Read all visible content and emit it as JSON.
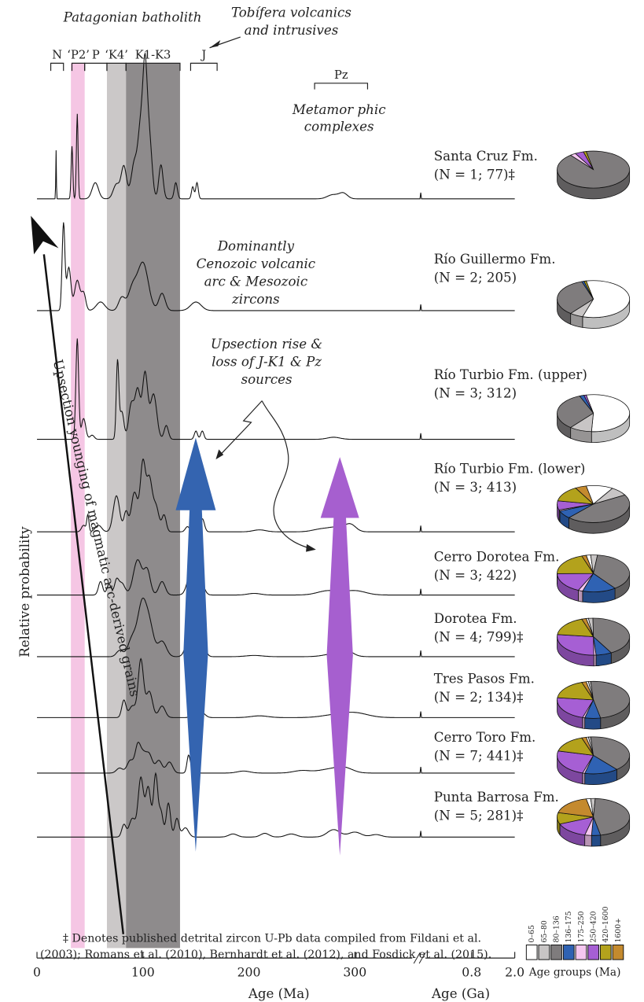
{
  "chart_data": {
    "type": "line",
    "title": "",
    "xlabel": "Age (Ma)",
    "xlabel2": "Age (Ga)",
    "ylabel": "Relative probability",
    "x_ticks": [
      "0",
      "100",
      "200",
      "300",
      "0.8",
      "2.0"
    ],
    "xlim_ma": [
      0,
      360
    ],
    "top_labels": {
      "batholith": "Patagonian batholith",
      "tobifera": [
        "Tobífera volcanics",
        "and intrusives"
      ],
      "metamorphic": [
        "Metamor phic",
        "complexes"
      ],
      "brackets": [
        {
          "label": "N",
          "range": [
            13,
            25
          ]
        },
        {
          "label": "‘P2’",
          "range": [
            33,
            45
          ]
        },
        {
          "label": "P",
          "range": [
            45,
            66
          ]
        },
        {
          "label": "‘K4’",
          "range": [
            66,
            84
          ]
        },
        {
          "label": "K1-K3",
          "range": [
            84,
            135
          ]
        },
        {
          "label": "J",
          "range": [
            145,
            170
          ]
        },
        {
          "label": "Pz",
          "range": [
            262,
            312
          ]
        }
      ]
    },
    "bands": [
      {
        "name": "P2",
        "range": [
          32,
          45
        ],
        "color": "#f5c6e4"
      },
      {
        "name": "K4",
        "range": [
          66,
          84
        ],
        "color": "#cbc8c8"
      },
      {
        "name": "K1-K3",
        "range": [
          84,
          135
        ],
        "color": "#8e8b8c"
      }
    ],
    "annotations": {
      "cenozoic": [
        "Dominantly",
        "Cenozoic volcanic",
        "arc & Mesozoic",
        "zircons"
      ],
      "upsection": [
        "Upsection rise &",
        "loss of J-K1 & Pz",
        "sources"
      ],
      "younging": "Upsection younging of magmatic arc-derived grains"
    },
    "series": [
      {
        "name": "Santa Cruz Fm.",
        "n_label": "(N = 1; 77)‡",
        "peaks": [
          [
            18,
            0.6,
            0.3
          ],
          [
            33,
            0.65,
            0.8
          ],
          [
            38,
            1.05,
            0.8
          ],
          [
            55,
            0.2,
            3
          ],
          [
            75,
            0.18,
            3
          ],
          [
            82,
            0.4,
            2.5
          ],
          [
            92,
            0.45,
            3
          ],
          [
            98,
            0.85,
            2.5
          ],
          [
            102,
            1.35,
            2
          ],
          [
            106,
            0.75,
            2.5
          ],
          [
            117,
            0.42,
            2
          ],
          [
            131,
            0.2,
            1.5
          ],
          [
            147,
            0.15,
            1.2
          ],
          [
            151,
            0.2,
            1.2
          ],
          [
            279,
            0.05,
            5
          ],
          [
            289,
            0.07,
            4
          ]
        ]
      },
      {
        "name": "Río Guillermo Fm.",
        "n_label": "(N = 2; 205)",
        "peaks": [
          [
            25,
            1.0,
            1.3
          ],
          [
            30,
            0.5,
            2
          ],
          [
            38,
            0.35,
            2.5
          ],
          [
            44,
            0.2,
            2
          ],
          [
            60,
            0.1,
            4
          ],
          [
            80,
            0.15,
            3
          ],
          [
            90,
            0.25,
            4
          ],
          [
            100,
            0.55,
            5
          ],
          [
            118,
            0.2,
            3
          ],
          [
            150,
            0.1,
            5
          ]
        ]
      },
      {
        "name": "Río Turbio Fm. (upper)",
        "n_label": "(N = 3; 312)",
        "peaks": [
          [
            38,
            1.45,
            1.3
          ],
          [
            44,
            0.3,
            2
          ],
          [
            52,
            0.06,
            2
          ],
          [
            76,
            1.1,
            1.2
          ],
          [
            80,
            0.4,
            2
          ],
          [
            89,
            0.5,
            2.5
          ],
          [
            95,
            0.7,
            2.5
          ],
          [
            102,
            0.95,
            2.5
          ],
          [
            110,
            0.65,
            3
          ],
          [
            122,
            0.2,
            2
          ],
          [
            150,
            0.12,
            1.5
          ],
          [
            156,
            0.12,
            1.5
          ],
          [
            280,
            0.03,
            6
          ]
        ]
      },
      {
        "name": "Río Turbio Fm. (lower)",
        "n_label": "(N = 3; 413)",
        "peaks": [
          [
            44,
            0.1,
            2
          ],
          [
            48,
            0.25,
            1
          ],
          [
            58,
            0.1,
            3
          ],
          [
            75,
            0.55,
            3
          ],
          [
            84,
            0.3,
            2
          ],
          [
            92,
            0.6,
            3
          ],
          [
            100,
            1.05,
            2.5
          ],
          [
            106,
            0.75,
            2.5
          ],
          [
            112,
            0.4,
            3
          ],
          [
            120,
            0.25,
            2
          ],
          [
            142,
            0.08,
            2
          ],
          [
            156,
            0.2,
            2
          ],
          [
            210,
            0.03,
            6
          ],
          [
            268,
            0.04,
            8
          ],
          [
            284,
            0.07,
            8
          ],
          [
            296,
            0.1,
            5
          ]
        ]
      },
      {
        "name": "Cerro Dorotea Fm.",
        "n_label": "(N = 3; 422)",
        "peaks": [
          [
            60,
            0.25,
            2
          ],
          [
            68,
            0.2,
            2
          ],
          [
            75,
            0.25,
            2
          ],
          [
            80,
            0.22,
            3
          ],
          [
            95,
            0.65,
            4
          ],
          [
            104,
            0.45,
            3
          ],
          [
            118,
            0.25,
            3
          ],
          [
            147,
            0.6,
            4
          ],
          [
            155,
            0.2,
            3
          ],
          [
            205,
            0.03,
            6
          ],
          [
            275,
            0.08,
            10
          ],
          [
            300,
            0.08,
            10
          ]
        ]
      },
      {
        "name": "Dorotea Fm.",
        "n_label": "(N = 4; 799)‡",
        "peaks": [
          [
            78,
            0.1,
            3
          ],
          [
            90,
            0.3,
            4
          ],
          [
            99,
            0.8,
            4
          ],
          [
            106,
            0.5,
            4
          ],
          [
            118,
            0.25,
            4
          ],
          [
            146,
            0.55,
            4
          ],
          [
            156,
            0.2,
            3
          ],
          [
            205,
            0.02,
            8
          ],
          [
            282,
            0.05,
            10
          ],
          [
            292,
            0.08,
            6
          ]
        ]
      },
      {
        "name": "Tres Pasos Fm.",
        "n_label": "(N = 2; 134)‡",
        "peaks": [
          [
            82,
            0.3,
            2
          ],
          [
            90,
            0.2,
            3
          ],
          [
            98,
            1.0,
            2.5
          ],
          [
            106,
            0.45,
            3
          ],
          [
            118,
            0.2,
            3
          ],
          [
            147,
            0.15,
            2
          ],
          [
            156,
            0.08,
            3
          ],
          [
            210,
            0.03,
            8
          ],
          [
            280,
            0.04,
            12
          ],
          [
            300,
            0.08,
            12
          ]
        ]
      },
      {
        "name": "Cerro Toro Fm.",
        "n_label": "(N = 7; 441)‡",
        "peaks": [
          [
            78,
            0.1,
            3
          ],
          [
            88,
            0.25,
            3
          ],
          [
            95,
            0.5,
            2.5
          ],
          [
            100,
            0.35,
            3
          ],
          [
            106,
            0.35,
            3
          ],
          [
            115,
            0.25,
            3
          ],
          [
            125,
            0.22,
            3
          ],
          [
            143,
            0.35,
            1.5
          ],
          [
            148,
            0.2,
            2
          ],
          [
            195,
            0.04,
            6
          ],
          [
            250,
            0.05,
            8
          ],
          [
            275,
            0.07,
            10
          ],
          [
            290,
            0.1,
            8
          ]
        ]
      },
      {
        "name": "Punta Barrosa Fm.",
        "n_label": "(N = 5; 281)‡",
        "peaks": [
          [
            82,
            0.2,
            2
          ],
          [
            90,
            0.3,
            3
          ],
          [
            98,
            0.95,
            2.5
          ],
          [
            105,
            0.8,
            2.5
          ],
          [
            112,
            1.0,
            2
          ],
          [
            117,
            0.4,
            2
          ],
          [
            124,
            0.55,
            2
          ],
          [
            132,
            0.3,
            2
          ],
          [
            140,
            0.15,
            3
          ],
          [
            185,
            0.05,
            4
          ],
          [
            215,
            0.06,
            4
          ],
          [
            240,
            0.05,
            5
          ],
          [
            280,
            0.12,
            6
          ],
          [
            300,
            0.08,
            6
          ],
          [
            320,
            0.04,
            5
          ]
        ]
      }
    ],
    "age_groups": {
      "title": "Age groups (Ma)",
      "labels": [
        "0–65",
        "65–80",
        "80–136",
        "136–175",
        "175–250",
        "250–420",
        "420–1600",
        "1600+"
      ],
      "colors": [
        "#ffffff",
        "#c8c5c5",
        "#7f7c7d",
        "#2f62b3",
        "#f5c7f0",
        "#a65fd4",
        "#b3a21c",
        "#c48a2e"
      ]
    },
    "pies": [
      [
        0,
        0,
        73,
        0,
        2,
        3,
        1,
        0
      ],
      [
        58,
        6,
        34,
        1,
        0,
        0,
        1,
        0
      ],
      [
        54,
        10,
        33,
        2,
        0,
        1,
        0,
        0
      ],
      [
        12,
        8,
        45,
        7,
        1,
        8,
        14,
        5
      ],
      [
        2,
        3,
        38,
        15,
        2,
        18,
        20,
        2
      ],
      [
        1,
        2,
        42,
        7,
        1,
        27,
        18,
        2
      ],
      [
        1,
        1,
        48,
        7,
        1,
        22,
        18,
        2
      ],
      [
        1,
        1,
        40,
        15,
        1,
        24,
        16,
        2
      ],
      [
        2,
        2,
        46,
        4,
        3,
        15,
        10,
        18
      ]
    ],
    "footnote": [
      "‡ Denotes published detrital zircon U-Pb data compiled from Fildani et al.",
      "(2003); Romans et al. (2010), Bernhardt et al. (2012), and Fosdick et al. (2015)."
    ]
  }
}
